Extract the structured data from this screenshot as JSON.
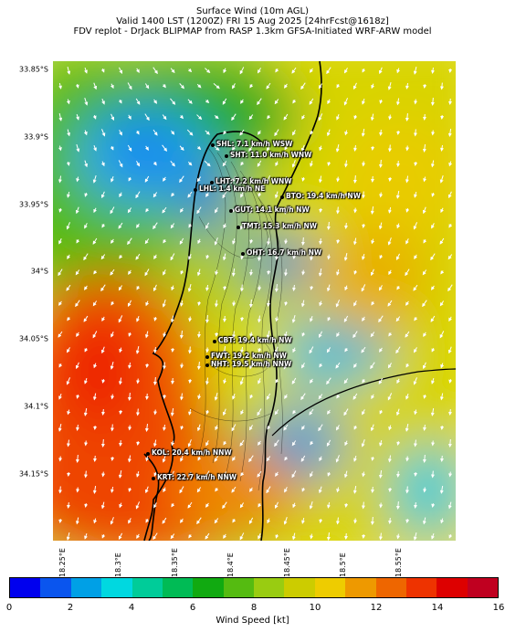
{
  "titles": {
    "line1": "Surface Wind (10m AGL)",
    "line2": "Valid 1400 LST (1200Z) FRI 15 Aug 2025 [24hrFcst@1618z]",
    "line3": "FDV replot - DrJack BLIPMAP from RASP 1.3km GFSA-Initiated WRF-ARW model"
  },
  "axes": {
    "lat_labels": [
      "33.85°S",
      "33.9°S",
      "33.95°S",
      "34°S",
      "34.05°S",
      "34.1°S",
      "34.15°S"
    ],
    "lon_labels": [
      "18.25°E",
      "18.3°E",
      "18.35°E",
      "18.4°E",
      "18.45°E",
      "18.5°E",
      "18.55°E"
    ]
  },
  "stations": [
    {
      "id": "SHL",
      "text": "SHL: 7.1 km/h WSW"
    },
    {
      "id": "SHT",
      "text": "SHT: 11.0 km/h WNW"
    },
    {
      "id": "LHT",
      "text": "LHT: 7.2 km/h WNW"
    },
    {
      "id": "LHL",
      "text": "LHL: 1.4 km/h NE"
    },
    {
      "id": "BTO",
      "text": "BTO: 19.4 km/h NW"
    },
    {
      "id": "GUT",
      "text": "GUT: 14.1 km/h NW"
    },
    {
      "id": "TMT",
      "text": "TMT: 15.3 km/h NW"
    },
    {
      "id": "OHT",
      "text": "OHT: 16.7 km/h NW"
    },
    {
      "id": "CBT",
      "text": "CBT: 19.4 km/h NW"
    },
    {
      "id": "FWT",
      "text": "FWT: 19.2 km/h NW"
    },
    {
      "id": "NHT",
      "text": "NHT: 19.5 km/h NNW"
    },
    {
      "id": "KOL",
      "text": "KOL: 20.4 km/h NNW"
    },
    {
      "id": "KRT",
      "text": "KRT: 22.7 km/h NNW"
    }
  ],
  "colorbar": {
    "label": "Wind Speed [kt]",
    "ticks": [
      "0",
      "2",
      "4",
      "6",
      "8",
      "10",
      "12",
      "14",
      "16"
    ],
    "colors": [
      "#0000ee",
      "#0a55ee",
      "#00a0e6",
      "#00d8e0",
      "#00cc99",
      "#00bb55",
      "#11aa11",
      "#55bb11",
      "#99cc11",
      "#cccc00",
      "#eecc00",
      "#ee9900",
      "#ee6600",
      "#ee3300",
      "#dd0000",
      "#c00020"
    ]
  }
}
